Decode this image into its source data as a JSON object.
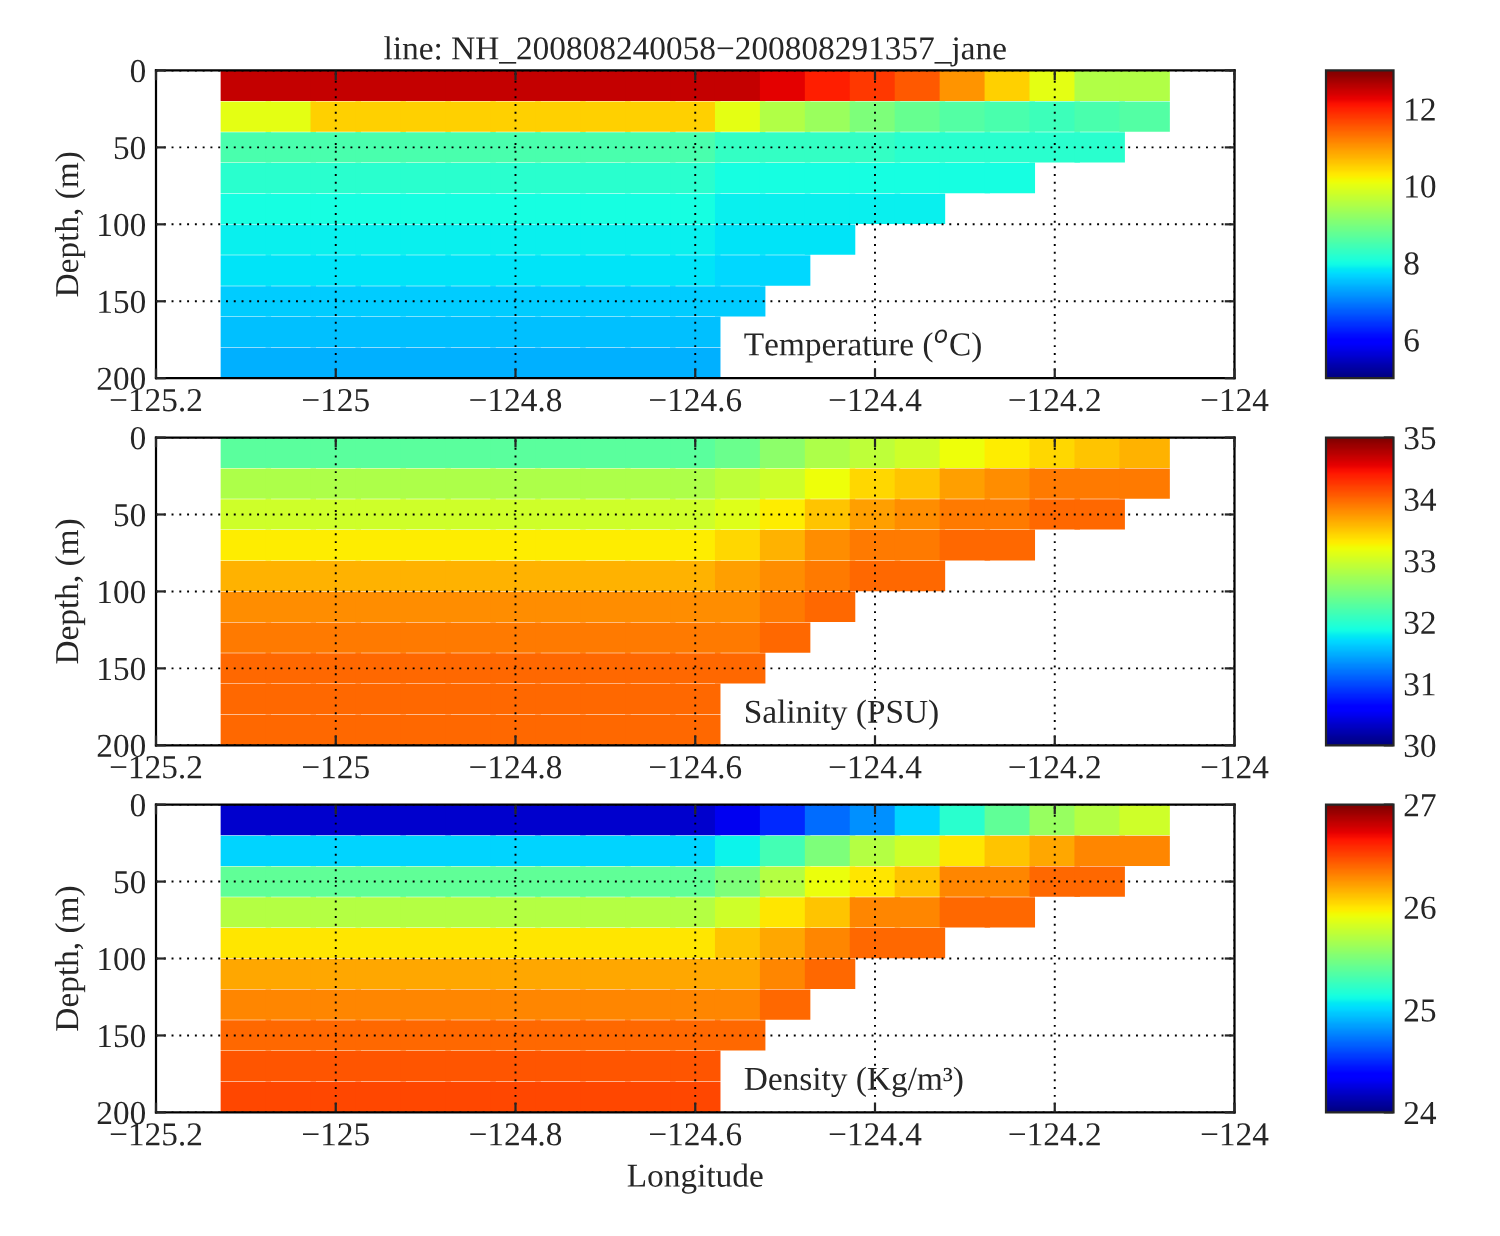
{
  "chart_data": [
    {
      "type": "scatter",
      "title": "line: NH_200808240058−200808291357_jane",
      "ylabel": "Depth, (m)",
      "annotations": [
        "Temperature ($^{o}$C)"
      ],
      "marker": "square",
      "grid": true,
      "clim": [
        5,
        13
      ],
      "cticks": [
        6,
        8,
        10,
        12
      ],
      "xlim": [
        -125.2,
        -124
      ],
      "xticks": [
        {
          "value": -125.2,
          "label": "−125.2"
        },
        {
          "value": -125,
          "label": "−125"
        },
        {
          "value": -124.8,
          "label": "−124.8"
        },
        {
          "value": -124.6,
          "label": "−124.6"
        },
        {
          "value": -124.4,
          "label": "−124.4"
        },
        {
          "value": -124.2,
          "label": "−124.2"
        },
        {
          "value": -124,
          "label": "−124"
        }
      ],
      "ylim": [
        200,
        0
      ],
      "yticks": [
        0,
        50,
        100,
        150,
        200
      ],
      "x": [
        -125.1,
        -125.1,
        -125.1,
        -125.1,
        -125.1,
        -125.1,
        -125.1,
        -125.1,
        -125.1,
        -125.1,
        -125.05,
        -125.05,
        -125.05,
        -125.05,
        -125.05,
        -125.05,
        -125.05,
        -125.05,
        -125.05,
        -125.05,
        -125.0,
        -125.0,
        -125.0,
        -125.0,
        -125.0,
        -125.0,
        -125.0,
        -125.0,
        -125.0,
        -125.0,
        -124.95,
        -124.95,
        -124.95,
        -124.95,
        -124.95,
        -124.95,
        -124.95,
        -124.95,
        -124.95,
        -124.95,
        -124.9,
        -124.9,
        -124.9,
        -124.9,
        -124.9,
        -124.9,
        -124.9,
        -124.9,
        -124.9,
        -124.9,
        -124.85,
        -124.85,
        -124.85,
        -124.85,
        -124.85,
        -124.85,
        -124.85,
        -124.85,
        -124.85,
        -124.85,
        -124.8,
        -124.8,
        -124.8,
        -124.8,
        -124.8,
        -124.8,
        -124.8,
        -124.8,
        -124.8,
        -124.8,
        -124.75,
        -124.75,
        -124.75,
        -124.75,
        -124.75,
        -124.75,
        -124.75,
        -124.75,
        -124.75,
        -124.75,
        -124.7,
        -124.7,
        -124.7,
        -124.7,
        -124.7,
        -124.7,
        -124.7,
        -124.7,
        -124.7,
        -124.7,
        -124.65,
        -124.65,
        -124.65,
        -124.65,
        -124.65,
        -124.65,
        -124.65,
        -124.65,
        -124.65,
        -124.65,
        -124.6,
        -124.6,
        -124.6,
        -124.6,
        -124.6,
        -124.6,
        -124.6,
        -124.6,
        -124.6,
        -124.6,
        -124.55,
        -124.55,
        -124.55,
        -124.55,
        -124.55,
        -124.55,
        -124.55,
        -124.55,
        -124.5,
        -124.5,
        -124.5,
        -124.5,
        -124.5,
        -124.5,
        -124.5,
        -124.45,
        -124.45,
        -124.45,
        -124.45,
        -124.45,
        -124.45,
        -124.4,
        -124.4,
        -124.4,
        -124.4,
        -124.4,
        -124.35,
        -124.35,
        -124.35,
        -124.35,
        -124.35,
        -124.3,
        -124.3,
        -124.3,
        -124.3,
        -124.25,
        -124.25,
        -124.25,
        -124.25,
        -124.2,
        -124.2,
        -124.2,
        -124.15,
        -124.15,
        -124.15,
        -124.1,
        -124.1
      ],
      "values": [
        10,
        30,
        50,
        70,
        90,
        110,
        130,
        150,
        170,
        190,
        10,
        30,
        50,
        70,
        90,
        110,
        130,
        150,
        170,
        190,
        10,
        30,
        50,
        70,
        90,
        110,
        130,
        150,
        170,
        190,
        10,
        30,
        50,
        70,
        90,
        110,
        130,
        150,
        170,
        190,
        10,
        30,
        50,
        70,
        90,
        110,
        130,
        150,
        170,
        190,
        10,
        30,
        50,
        70,
        90,
        110,
        130,
        150,
        170,
        190,
        10,
        30,
        50,
        70,
        90,
        110,
        130,
        150,
        170,
        190,
        10,
        30,
        50,
        70,
        90,
        110,
        130,
        150,
        170,
        190,
        10,
        30,
        50,
        70,
        90,
        110,
        130,
        150,
        170,
        190,
        10,
        30,
        50,
        70,
        90,
        110,
        130,
        150,
        170,
        190,
        10,
        30,
        50,
        70,
        90,
        110,
        130,
        150,
        170,
        190,
        10,
        30,
        50,
        70,
        90,
        110,
        130,
        150,
        10,
        30,
        50,
        70,
        90,
        110,
        130,
        10,
        30,
        50,
        70,
        90,
        110,
        10,
        30,
        50,
        70,
        90,
        10,
        30,
        50,
        70,
        90,
        10,
        30,
        50,
        70,
        10,
        30,
        50,
        70,
        10,
        30,
        50,
        10,
        30,
        50,
        10,
        30
      ],
      "cvalues": [
        12.5,
        10.0,
        8.5,
        8.2,
        8.0,
        7.9,
        7.8,
        7.6,
        7.5,
        7.4,
        12.5,
        10.0,
        8.5,
        8.2,
        8.0,
        7.9,
        7.8,
        7.6,
        7.5,
        7.4,
        12.5,
        10.5,
        8.5,
        8.2,
        8.0,
        7.9,
        7.8,
        7.6,
        7.5,
        7.4,
        12.5,
        10.5,
        8.5,
        8.2,
        8.0,
        7.9,
        7.8,
        7.6,
        7.5,
        7.4,
        12.5,
        10.5,
        8.5,
        8.2,
        8.0,
        7.9,
        7.8,
        7.6,
        7.5,
        7.4,
        12.5,
        10.5,
        8.5,
        8.2,
        8.0,
        7.9,
        7.8,
        7.6,
        7.5,
        7.4,
        12.5,
        10.5,
        8.5,
        8.2,
        8.0,
        7.9,
        7.8,
        7.6,
        7.5,
        7.4,
        12.5,
        10.5,
        8.5,
        8.2,
        8.0,
        7.9,
        7.8,
        7.6,
        7.5,
        7.4,
        12.5,
        10.5,
        8.5,
        8.2,
        8.0,
        7.9,
        7.8,
        7.6,
        7.5,
        7.4,
        12.5,
        10.5,
        8.5,
        8.2,
        8.0,
        7.9,
        7.8,
        7.6,
        7.5,
        7.4,
        12.5,
        10.5,
        8.5,
        8.2,
        8.0,
        7.9,
        7.8,
        7.6,
        7.5,
        7.4,
        12.5,
        10.0,
        8.3,
        8.0,
        7.9,
        7.8,
        7.7,
        7.6,
        12.3,
        9.5,
        8.3,
        8.0,
        7.9,
        7.8,
        7.7,
        12.0,
        9.3,
        8.3,
        8.0,
        7.9,
        7.8,
        11.8,
        9.0,
        8.3,
        8.0,
        7.9,
        11.5,
        8.8,
        8.2,
        8.0,
        7.9,
        11.0,
        8.6,
        8.2,
        8.0,
        10.5,
        8.5,
        8.2,
        8.0,
        10.0,
        8.4,
        8.2,
        9.5,
        8.5,
        8.2,
        9.5,
        8.6
      ]
    },
    {
      "type": "scatter",
      "ylabel": "Depth, (m)",
      "annotations": [
        "Salinity (PSU)"
      ],
      "marker": "square",
      "grid": true,
      "clim": [
        30,
        35
      ],
      "cticks": [
        30,
        31,
        32,
        33,
        34,
        35
      ],
      "xlim": [
        -125.2,
        -124
      ],
      "xticks": [
        {
          "value": -125.2,
          "label": "−125.2"
        },
        {
          "value": -125,
          "label": "−125"
        },
        {
          "value": -124.8,
          "label": "−124.8"
        },
        {
          "value": -124.6,
          "label": "−124.6"
        },
        {
          "value": -124.4,
          "label": "−124.4"
        },
        {
          "value": -124.2,
          "label": "−124.2"
        },
        {
          "value": -124,
          "label": "−124"
        }
      ],
      "ylim": [
        200,
        0
      ],
      "yticks": [
        0,
        50,
        100,
        150,
        200
      ],
      "x": [
        -125.1,
        -125.1,
        -125.1,
        -125.1,
        -125.1,
        -125.1,
        -125.1,
        -125.1,
        -125.1,
        -125.1,
        -125.05,
        -125.05,
        -125.05,
        -125.05,
        -125.05,
        -125.05,
        -125.05,
        -125.05,
        -125.05,
        -125.05,
        -125.0,
        -125.0,
        -125.0,
        -125.0,
        -125.0,
        -125.0,
        -125.0,
        -125.0,
        -125.0,
        -125.0,
        -124.95,
        -124.95,
        -124.95,
        -124.95,
        -124.95,
        -124.95,
        -124.95,
        -124.95,
        -124.95,
        -124.95,
        -124.9,
        -124.9,
        -124.9,
        -124.9,
        -124.9,
        -124.9,
        -124.9,
        -124.9,
        -124.9,
        -124.9,
        -124.85,
        -124.85,
        -124.85,
        -124.85,
        -124.85,
        -124.85,
        -124.85,
        -124.85,
        -124.85,
        -124.85,
        -124.8,
        -124.8,
        -124.8,
        -124.8,
        -124.8,
        -124.8,
        -124.8,
        -124.8,
        -124.8,
        -124.8,
        -124.75,
        -124.75,
        -124.75,
        -124.75,
        -124.75,
        -124.75,
        -124.75,
        -124.75,
        -124.75,
        -124.75,
        -124.7,
        -124.7,
        -124.7,
        -124.7,
        -124.7,
        -124.7,
        -124.7,
        -124.7,
        -124.7,
        -124.7,
        -124.65,
        -124.65,
        -124.65,
        -124.65,
        -124.65,
        -124.65,
        -124.65,
        -124.65,
        -124.65,
        -124.65,
        -124.6,
        -124.6,
        -124.6,
        -124.6,
        -124.6,
        -124.6,
        -124.6,
        -124.6,
        -124.6,
        -124.6,
        -124.55,
        -124.55,
        -124.55,
        -124.55,
        -124.55,
        -124.55,
        -124.55,
        -124.55,
        -124.5,
        -124.5,
        -124.5,
        -124.5,
        -124.5,
        -124.5,
        -124.5,
        -124.45,
        -124.45,
        -124.45,
        -124.45,
        -124.45,
        -124.45,
        -124.4,
        -124.4,
        -124.4,
        -124.4,
        -124.4,
        -124.35,
        -124.35,
        -124.35,
        -124.35,
        -124.35,
        -124.3,
        -124.3,
        -124.3,
        -124.3,
        -124.25,
        -124.25,
        -124.25,
        -124.25,
        -124.2,
        -124.2,
        -124.2,
        -124.15,
        -124.15,
        -124.15,
        -124.1,
        -124.1
      ],
      "values": [
        10,
        30,
        50,
        70,
        90,
        110,
        130,
        150,
        170,
        190,
        10,
        30,
        50,
        70,
        90,
        110,
        130,
        150,
        170,
        190,
        10,
        30,
        50,
        70,
        90,
        110,
        130,
        150,
        170,
        190,
        10,
        30,
        50,
        70,
        90,
        110,
        130,
        150,
        170,
        190,
        10,
        30,
        50,
        70,
        90,
        110,
        130,
        150,
        170,
        190,
        10,
        30,
        50,
        70,
        90,
        110,
        130,
        150,
        170,
        190,
        10,
        30,
        50,
        70,
        90,
        110,
        130,
        150,
        170,
        190,
        10,
        30,
        50,
        70,
        90,
        110,
        130,
        150,
        170,
        190,
        10,
        30,
        50,
        70,
        90,
        110,
        130,
        150,
        170,
        190,
        10,
        30,
        50,
        70,
        90,
        110,
        130,
        150,
        170,
        190,
        10,
        30,
        50,
        70,
        90,
        110,
        130,
        150,
        170,
        190,
        10,
        30,
        50,
        70,
        90,
        110,
        130,
        150,
        10,
        30,
        50,
        70,
        90,
        110,
        130,
        10,
        30,
        50,
        70,
        90,
        110,
        10,
        30,
        50,
        70,
        90,
        10,
        30,
        50,
        70,
        90,
        10,
        30,
        50,
        70,
        10,
        30,
        50,
        70,
        10,
        30,
        50,
        10,
        30,
        50,
        10,
        30
      ],
      "cvalues": [
        32.3,
        32.8,
        33.0,
        33.3,
        33.6,
        33.8,
        33.9,
        34.0,
        34.0,
        34.0,
        32.3,
        32.8,
        33.0,
        33.3,
        33.6,
        33.8,
        33.9,
        34.0,
        34.0,
        34.0,
        32.3,
        32.8,
        33.0,
        33.3,
        33.6,
        33.8,
        33.9,
        34.0,
        34.0,
        34.0,
        32.3,
        32.8,
        33.0,
        33.3,
        33.6,
        33.8,
        33.9,
        34.0,
        34.0,
        34.0,
        32.3,
        32.8,
        33.0,
        33.3,
        33.6,
        33.8,
        33.9,
        34.0,
        34.0,
        34.0,
        32.3,
        32.8,
        33.0,
        33.3,
        33.6,
        33.8,
        33.9,
        34.0,
        34.0,
        34.0,
        32.3,
        32.8,
        33.0,
        33.3,
        33.6,
        33.8,
        33.9,
        34.0,
        34.0,
        34.0,
        32.3,
        32.8,
        33.0,
        33.3,
        33.6,
        33.8,
        33.9,
        34.0,
        34.0,
        34.0,
        32.3,
        32.8,
        33.0,
        33.3,
        33.6,
        33.8,
        33.9,
        34.0,
        34.0,
        34.0,
        32.3,
        32.8,
        33.0,
        33.3,
        33.6,
        33.8,
        33.9,
        34.0,
        34.0,
        34.0,
        32.3,
        32.8,
        33.0,
        33.3,
        33.6,
        33.8,
        33.9,
        34.0,
        34.0,
        34.0,
        32.4,
        32.9,
        33.1,
        33.4,
        33.7,
        33.8,
        33.9,
        34.0,
        32.6,
        33.0,
        33.3,
        33.6,
        33.8,
        33.9,
        34.0,
        32.8,
        33.2,
        33.5,
        33.8,
        33.9,
        34.0,
        32.9,
        33.4,
        33.7,
        33.9,
        34.0,
        33.0,
        33.5,
        33.8,
        33.9,
        34.0,
        33.2,
        33.7,
        33.9,
        34.0,
        33.3,
        33.8,
        33.9,
        34.0,
        33.4,
        33.9,
        34.0,
        33.5,
        33.9,
        34.0,
        33.6,
        33.9
      ]
    },
    {
      "type": "scatter",
      "ylabel": "Depth, (m)",
      "xlabel": "Longitude",
      "annotations": [
        "Density (Kg/m³)"
      ],
      "marker": "square",
      "grid": true,
      "clim": [
        24,
        27
      ],
      "cticks": [
        24,
        25,
        26,
        27
      ],
      "xlim": [
        -125.2,
        -124
      ],
      "xticks": [
        {
          "value": -125.2,
          "label": "−125.2"
        },
        {
          "value": -125,
          "label": "−125"
        },
        {
          "value": -124.8,
          "label": "−124.8"
        },
        {
          "value": -124.6,
          "label": "−124.6"
        },
        {
          "value": -124.4,
          "label": "−124.4"
        },
        {
          "value": -124.2,
          "label": "−124.2"
        },
        {
          "value": -124,
          "label": "−124"
        }
      ],
      "ylim": [
        200,
        0
      ],
      "yticks": [
        0,
        50,
        100,
        150,
        200
      ],
      "x": [
        -125.1,
        -125.1,
        -125.1,
        -125.1,
        -125.1,
        -125.1,
        -125.1,
        -125.1,
        -125.1,
        -125.1,
        -125.05,
        -125.05,
        -125.05,
        -125.05,
        -125.05,
        -125.05,
        -125.05,
        -125.05,
        -125.05,
        -125.05,
        -125.0,
        -125.0,
        -125.0,
        -125.0,
        -125.0,
        -125.0,
        -125.0,
        -125.0,
        -125.0,
        -125.0,
        -124.95,
        -124.95,
        -124.95,
        -124.95,
        -124.95,
        -124.95,
        -124.95,
        -124.95,
        -124.95,
        -124.95,
        -124.9,
        -124.9,
        -124.9,
        -124.9,
        -124.9,
        -124.9,
        -124.9,
        -124.9,
        -124.9,
        -124.9,
        -124.85,
        -124.85,
        -124.85,
        -124.85,
        -124.85,
        -124.85,
        -124.85,
        -124.85,
        -124.85,
        -124.85,
        -124.8,
        -124.8,
        -124.8,
        -124.8,
        -124.8,
        -124.8,
        -124.8,
        -124.8,
        -124.8,
        -124.8,
        -124.75,
        -124.75,
        -124.75,
        -124.75,
        -124.75,
        -124.75,
        -124.75,
        -124.75,
        -124.75,
        -124.75,
        -124.7,
        -124.7,
        -124.7,
        -124.7,
        -124.7,
        -124.7,
        -124.7,
        -124.7,
        -124.7,
        -124.7,
        -124.65,
        -124.65,
        -124.65,
        -124.65,
        -124.65,
        -124.65,
        -124.65,
        -124.65,
        -124.65,
        -124.65,
        -124.6,
        -124.6,
        -124.6,
        -124.6,
        -124.6,
        -124.6,
        -124.6,
        -124.6,
        -124.6,
        -124.6,
        -124.55,
        -124.55,
        -124.55,
        -124.55,
        -124.55,
        -124.55,
        -124.55,
        -124.55,
        -124.5,
        -124.5,
        -124.5,
        -124.5,
        -124.5,
        -124.5,
        -124.5,
        -124.45,
        -124.45,
        -124.45,
        -124.45,
        -124.45,
        -124.45,
        -124.4,
        -124.4,
        -124.4,
        -124.4,
        -124.4,
        -124.35,
        -124.35,
        -124.35,
        -124.35,
        -124.35,
        -124.3,
        -124.3,
        -124.3,
        -124.3,
        -124.25,
        -124.25,
        -124.25,
        -124.25,
        -124.2,
        -124.2,
        -124.2,
        -124.15,
        -124.15,
        -124.15,
        -124.1,
        -124.1
      ],
      "values": [
        10,
        30,
        50,
        70,
        90,
        110,
        130,
        150,
        170,
        190,
        10,
        30,
        50,
        70,
        90,
        110,
        130,
        150,
        170,
        190,
        10,
        30,
        50,
        70,
        90,
        110,
        130,
        150,
        170,
        190,
        10,
        30,
        50,
        70,
        90,
        110,
        130,
        150,
        170,
        190,
        10,
        30,
        50,
        70,
        90,
        110,
        130,
        150,
        170,
        190,
        10,
        30,
        50,
        70,
        90,
        110,
        130,
        150,
        170,
        190,
        10,
        30,
        50,
        70,
        90,
        110,
        130,
        150,
        170,
        190,
        10,
        30,
        50,
        70,
        90,
        110,
        130,
        150,
        170,
        190,
        10,
        30,
        50,
        70,
        90,
        110,
        130,
        150,
        170,
        190,
        10,
        30,
        50,
        70,
        90,
        110,
        130,
        150,
        170,
        190,
        10,
        30,
        50,
        70,
        90,
        110,
        130,
        150,
        170,
        190,
        10,
        30,
        50,
        70,
        90,
        110,
        130,
        150,
        10,
        30,
        50,
        70,
        90,
        110,
        130,
        10,
        30,
        50,
        70,
        90,
        110,
        10,
        30,
        50,
        70,
        90,
        10,
        30,
        50,
        70,
        90,
        10,
        30,
        50,
        70,
        10,
        30,
        50,
        70,
        10,
        30,
        50,
        10,
        30,
        50,
        10,
        30
      ],
      "cvalues": [
        24.2,
        25.0,
        25.4,
        25.7,
        26.0,
        26.2,
        26.3,
        26.4,
        26.45,
        26.5,
        24.2,
        25.0,
        25.4,
        25.7,
        26.0,
        26.2,
        26.3,
        26.4,
        26.45,
        26.5,
        24.2,
        25.0,
        25.4,
        25.7,
        26.0,
        26.2,
        26.3,
        26.4,
        26.45,
        26.5,
        24.2,
        25.0,
        25.4,
        25.7,
        26.0,
        26.2,
        26.3,
        26.4,
        26.45,
        26.5,
        24.2,
        25.0,
        25.4,
        25.7,
        26.0,
        26.2,
        26.3,
        26.4,
        26.45,
        26.5,
        24.2,
        25.0,
        25.4,
        25.7,
        26.0,
        26.2,
        26.3,
        26.4,
        26.45,
        26.5,
        24.2,
        25.0,
        25.4,
        25.7,
        26.0,
        26.2,
        26.3,
        26.4,
        26.45,
        26.5,
        24.2,
        25.0,
        25.4,
        25.7,
        26.0,
        26.2,
        26.3,
        26.4,
        26.45,
        26.5,
        24.2,
        25.0,
        25.4,
        25.7,
        26.0,
        26.2,
        26.3,
        26.4,
        26.45,
        26.5,
        24.2,
        25.0,
        25.4,
        25.7,
        26.0,
        26.2,
        26.3,
        26.4,
        26.45,
        26.5,
        24.2,
        25.0,
        25.4,
        25.7,
        26.0,
        26.2,
        26.3,
        26.4,
        26.45,
        26.5,
        24.3,
        25.1,
        25.5,
        25.8,
        26.1,
        26.2,
        26.3,
        26.4,
        24.5,
        25.3,
        25.7,
        26.0,
        26.2,
        26.3,
        26.4,
        24.7,
        25.5,
        25.9,
        26.1,
        26.3,
        26.4,
        24.8,
        25.7,
        26.0,
        26.3,
        26.4,
        25.0,
        25.8,
        26.1,
        26.3,
        26.4,
        25.2,
        26.0,
        26.3,
        26.4,
        25.4,
        26.1,
        26.3,
        26.4,
        25.6,
        26.2,
        26.4,
        25.7,
        26.3,
        26.4,
        25.8,
        26.3
      ]
    }
  ]
}
